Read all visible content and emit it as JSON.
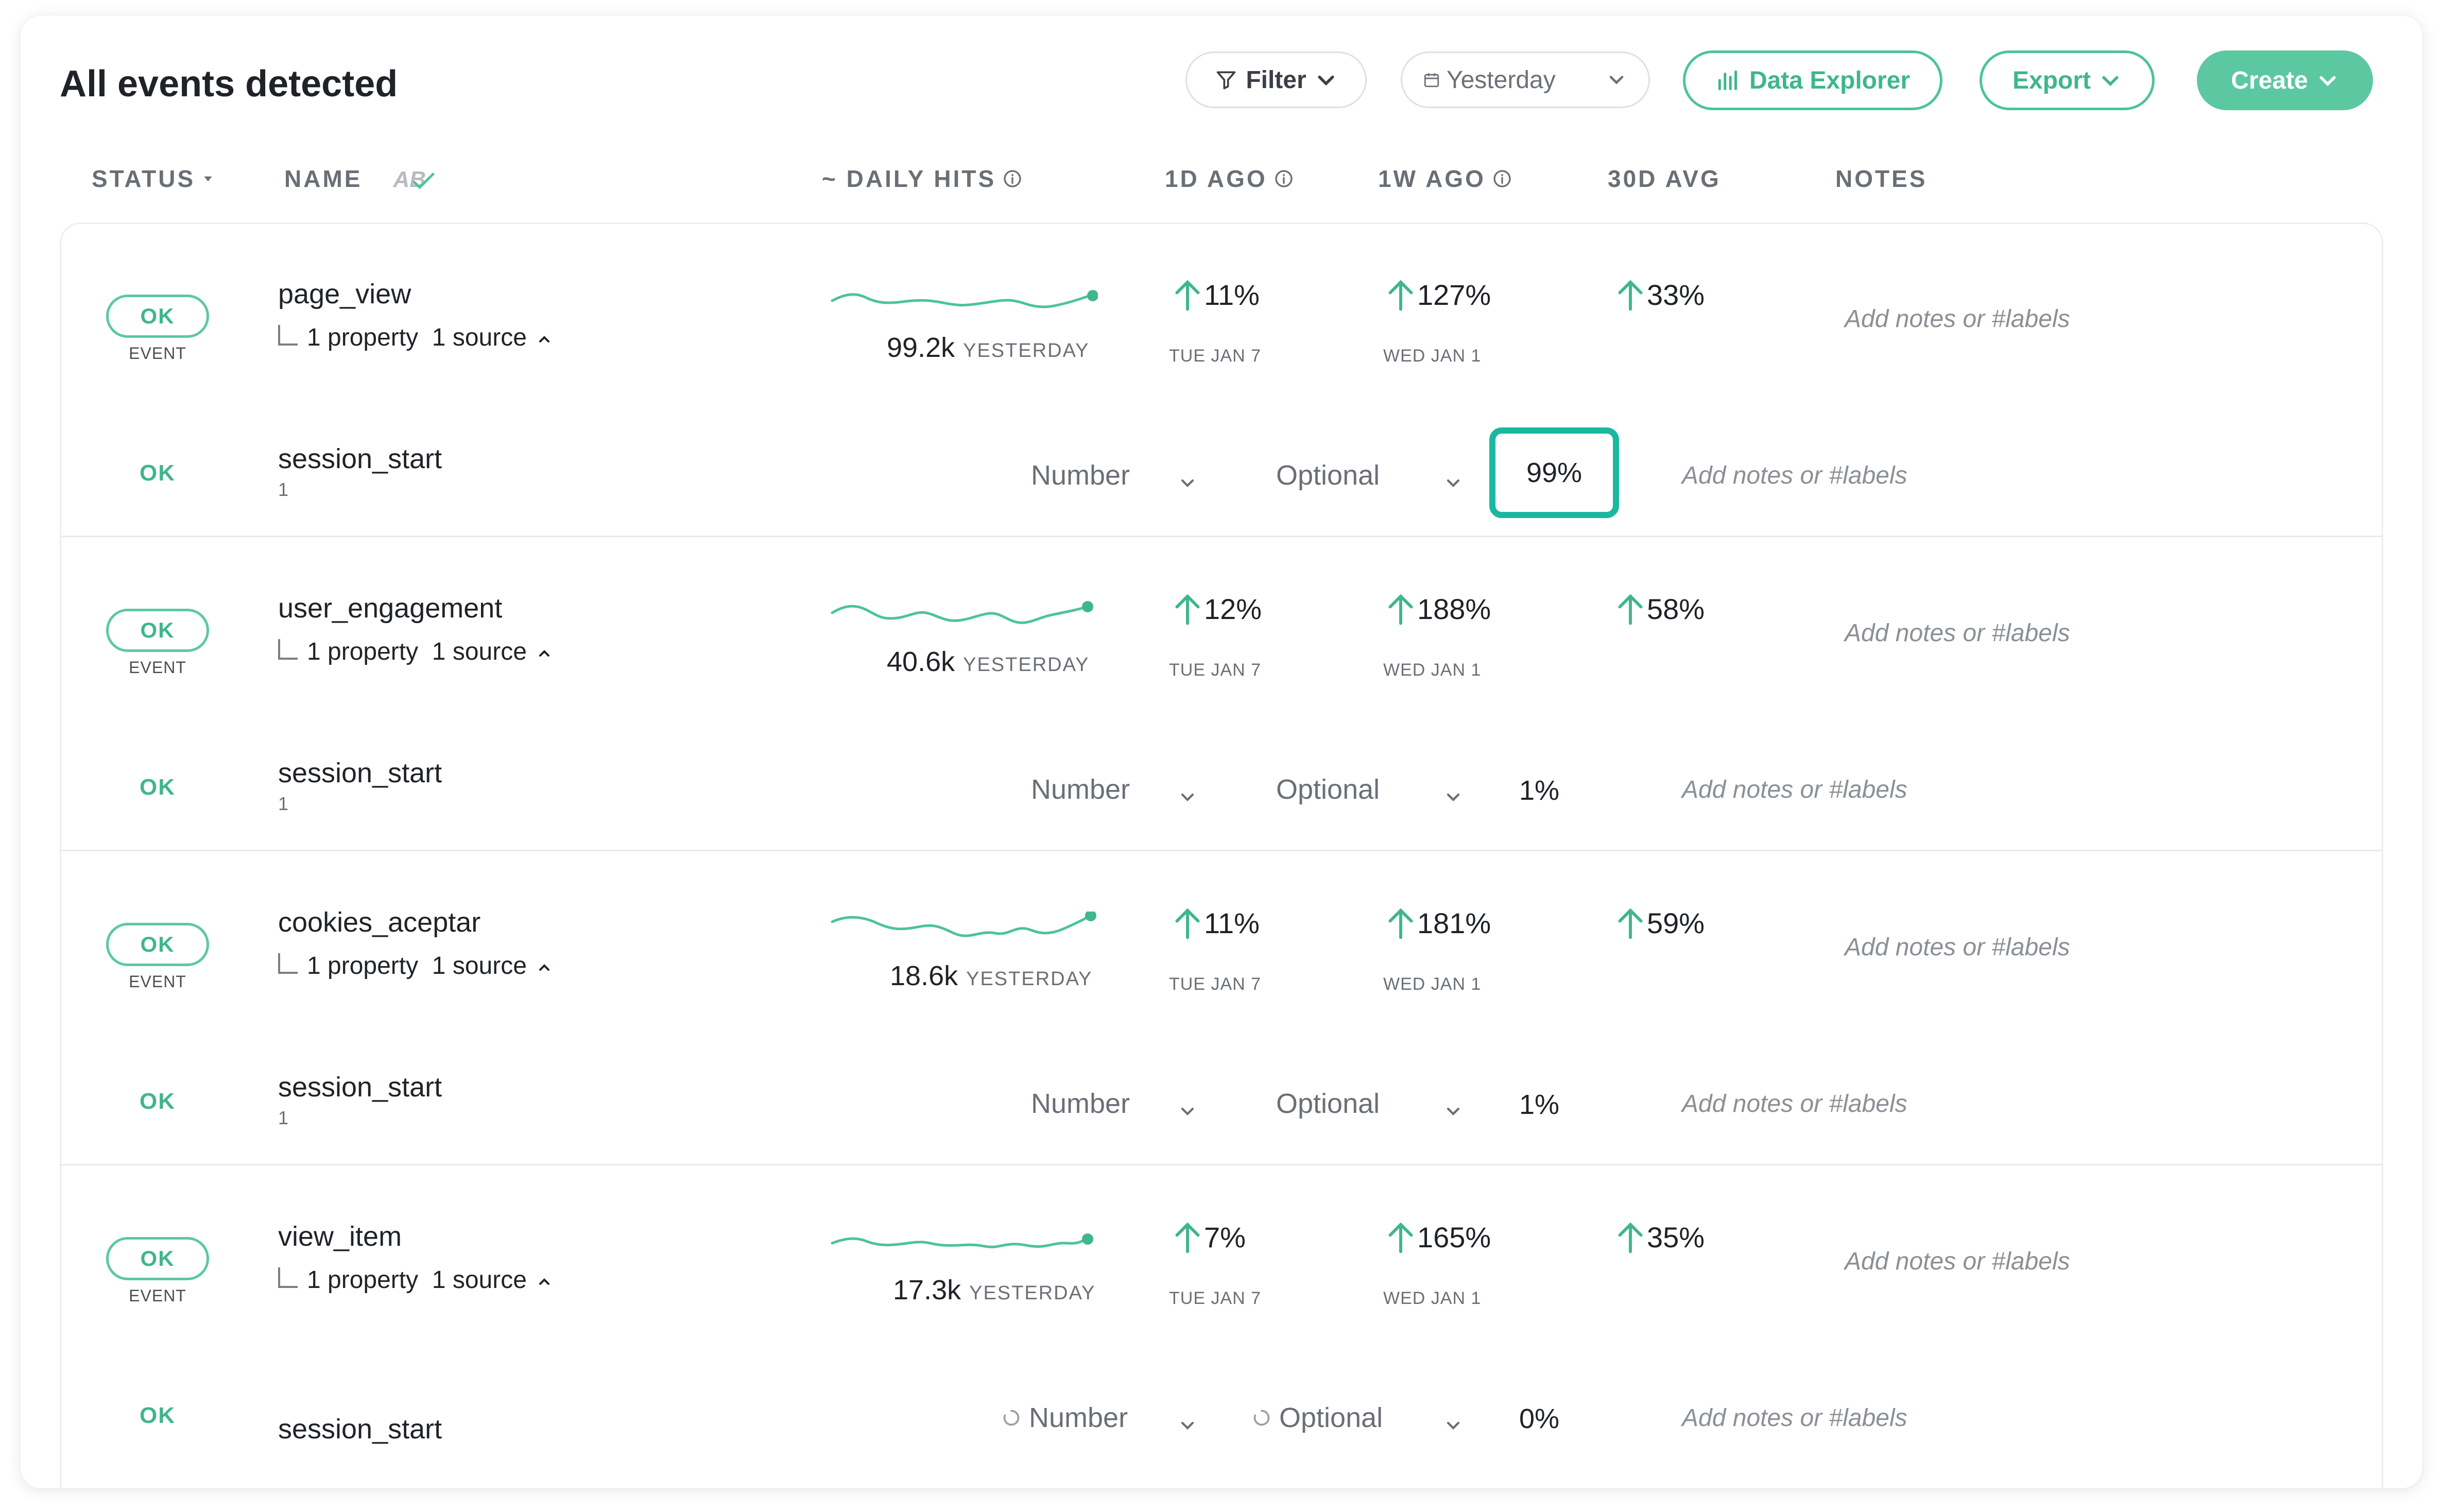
{
  "page": {
    "title": "All events detected"
  },
  "toolbar": {
    "filter_label": "Filter",
    "date_label": "Yesterday",
    "explorer_label": "Data Explorer",
    "export_label": "Export",
    "create_label": "Create"
  },
  "columns": {
    "status": "STATUS",
    "name": "NAME",
    "name_sort_glyph": "AB",
    "daily_hits": "~ DAILY HITS",
    "one_day_ago": "1D AGO",
    "one_week_ago": "1W AGO",
    "avg_30d": "30D AVG",
    "notes": "NOTES"
  },
  "colors": {
    "accent": "#5cc8a2",
    "accent_dark": "#3fb68d",
    "focus": "#1ab8a0"
  },
  "events": [
    {
      "status": "OK",
      "kind": "EVENT",
      "name": "page_view",
      "meta": "1 property  1 source",
      "hits": "99.2k",
      "hits_label": "YESTERDAY",
      "d1": "11%",
      "d1_date": "TUE JAN 7",
      "w1": "127%",
      "w1_date": "WED JAN 1",
      "avg30": "33%",
      "notes_placeholder": "Add notes or #labels",
      "property": {
        "status": "OK",
        "name": "session_start",
        "count": "1",
        "type": "Number",
        "required": "Optional",
        "coverage": "99%",
        "notes_placeholder": "Add notes or #labels"
      }
    },
    {
      "status": "OK",
      "kind": "EVENT",
      "name": "user_engagement",
      "meta": "1 property  1 source",
      "hits": "40.6k",
      "hits_label": "YESTERDAY",
      "d1": "12%",
      "d1_date": "TUE JAN 7",
      "w1": "188%",
      "w1_date": "WED JAN 1",
      "avg30": "58%",
      "notes_placeholder": "Add notes or #labels",
      "property": {
        "status": "OK",
        "name": "session_start",
        "count": "1",
        "type": "Number",
        "required": "Optional",
        "coverage": "1%",
        "notes_placeholder": "Add notes or #labels"
      }
    },
    {
      "status": "OK",
      "kind": "EVENT",
      "name": "cookies_aceptar",
      "meta": "1 property  1 source",
      "hits": "18.6k",
      "hits_label": "YESTERDAY",
      "d1": "11%",
      "d1_date": "TUE JAN 7",
      "w1": "181%",
      "w1_date": "WED JAN 1",
      "avg30": "59%",
      "notes_placeholder": "Add notes or #labels",
      "property": {
        "status": "OK",
        "name": "session_start",
        "count": "1",
        "type": "Number",
        "required": "Optional",
        "coverage": "1%",
        "notes_placeholder": "Add notes or #labels"
      }
    },
    {
      "status": "OK",
      "kind": "EVENT",
      "name": "view_item",
      "meta": "1 property  1 source",
      "hits": "17.3k",
      "hits_label": "YESTERDAY",
      "d1": "7%",
      "d1_date": "TUE JAN 7",
      "w1": "165%",
      "w1_date": "WED JAN 1",
      "avg30": "35%",
      "notes_placeholder": "Add notes or #labels",
      "property": {
        "status": "OK",
        "name": "session_start",
        "count": "",
        "type": "Number",
        "required": "Optional",
        "coverage": "0%",
        "notes_placeholder": "Add notes or #labels"
      }
    }
  ]
}
